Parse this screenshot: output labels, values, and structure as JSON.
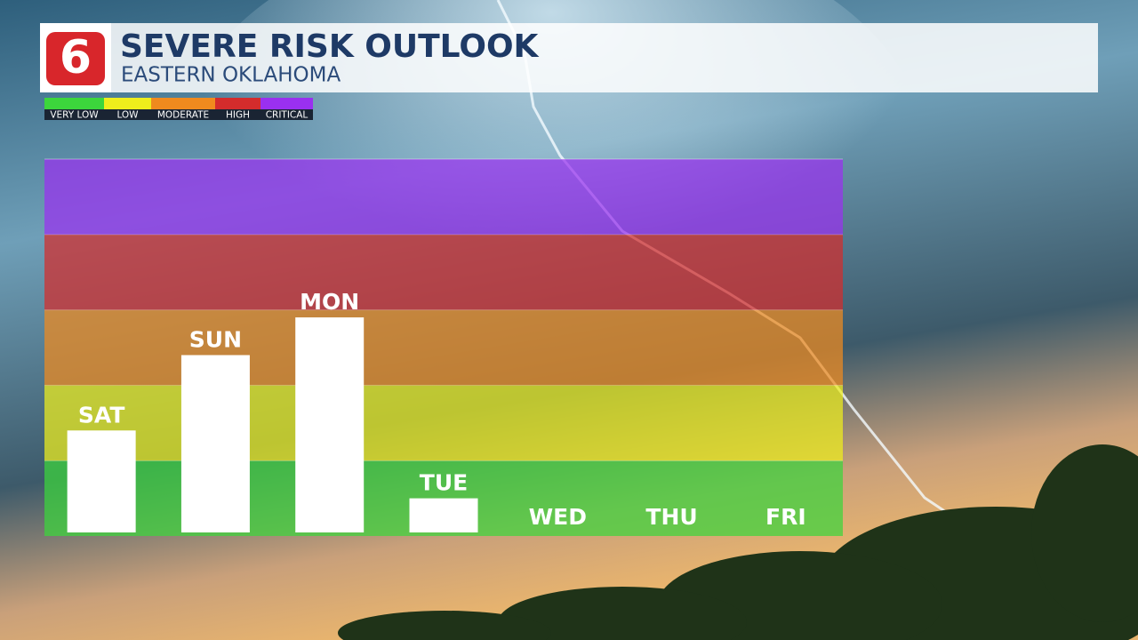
{
  "logo": "6",
  "chart_data": {
    "type": "bar",
    "title": "SEVERE RISK OUTLOOK",
    "subtitle": "EASTERN OKLAHOMA",
    "categories": [
      "SAT",
      "SUN",
      "MON",
      "TUE",
      "WED",
      "THU",
      "FRI"
    ],
    "values": [
      1.4,
      2.4,
      2.9,
      0.5,
      0,
      0,
      0
    ],
    "color": "#ffffff",
    "ylim": [
      0,
      5
    ],
    "bands": [
      {
        "name": "VERY LOW",
        "color": "#3cd63c",
        "range": [
          0,
          1
        ]
      },
      {
        "name": "LOW",
        "color": "#eeee1c",
        "range": [
          1,
          2
        ]
      },
      {
        "name": "MODERATE",
        "color": "#f08a1e",
        "range": [
          2,
          3
        ]
      },
      {
        "name": "HIGH",
        "color": "#d42c2c",
        "range": [
          3,
          4
        ]
      },
      {
        "name": "CRITICAL",
        "color": "#9a30f0",
        "range": [
          4,
          5
        ]
      }
    ]
  }
}
